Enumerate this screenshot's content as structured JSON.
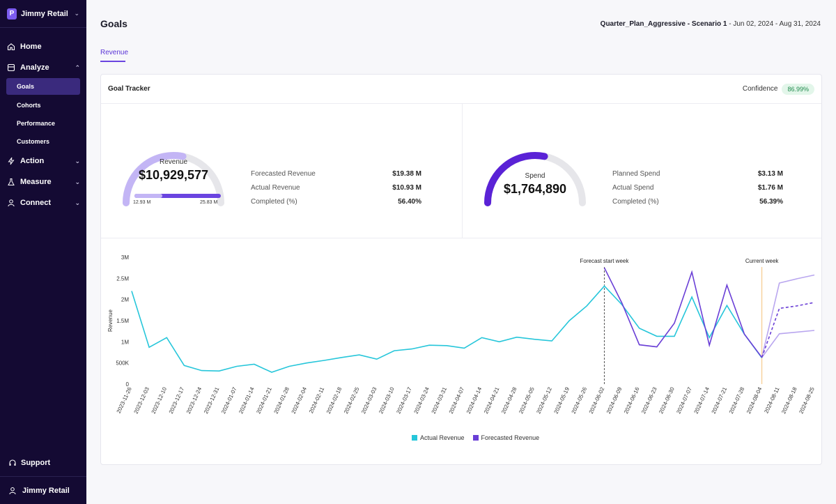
{
  "app": {
    "brand_name": "Jimmy Retail",
    "brand_logo_letter": "P"
  },
  "sidebar": {
    "items": [
      {
        "label": "Home",
        "icon": "home-icon"
      },
      {
        "label": "Analyze",
        "icon": "analyze-icon",
        "expanded": true,
        "children": [
          "Goals",
          "Cohorts",
          "Performance",
          "Customers"
        ],
        "active_child": "Goals"
      },
      {
        "label": "Action",
        "icon": "bolt-icon"
      },
      {
        "label": "Measure",
        "icon": "flask-icon"
      },
      {
        "label": "Connect",
        "icon": "connect-icon"
      }
    ],
    "support_label": "Support",
    "user_label": "Jimmy Retail"
  },
  "header": {
    "title": "Goals",
    "scenario_name": "Quarter_Plan_Aggressive - Scenario 1",
    "separator": "-",
    "date_range": "Jun 02, 2024 - Aug 31, 2024"
  },
  "tabs": [
    {
      "label": "Revenue",
      "active": true
    }
  ],
  "goal_tracker": {
    "title": "Goal Tracker",
    "confidence_label": "Confidence",
    "confidence_value": "86.99%",
    "revenue_gauge": {
      "label": "Revenue",
      "value": "$10,929,577",
      "fraction": 0.564,
      "range_min": "12.93 M",
      "range_max": "25.83 M",
      "metrics": [
        {
          "label": "Forecasted Revenue",
          "value": "$19.38 M"
        },
        {
          "label": "Actual Revenue",
          "value": "$10.93 M"
        },
        {
          "label": "Completed (%)",
          "value": "56.40%"
        }
      ]
    },
    "spend_gauge": {
      "label": "Spend",
      "value": "$1,764,890",
      "fraction": 0.5639,
      "metrics": [
        {
          "label": "Planned Spend",
          "value": "$3.13 M"
        },
        {
          "label": "Actual Spend",
          "value": "$1.76 M"
        },
        {
          "label": "Completed (%)",
          "value": "56.39%"
        }
      ]
    }
  },
  "colors": {
    "sidebar_bg": "#140a33",
    "accent": "#6a44e0",
    "actual": "#26c6da",
    "forecast": "#6a3fd6",
    "forecast_light": "#b9a6ef",
    "gauge_track": "#e6e6ea",
    "revenue_arc": "#c3b5f5",
    "spend_arc": "#5a22d6",
    "current_week_line": "#f5c27a"
  },
  "chart_data": {
    "type": "line",
    "ylabel": "Revenue",
    "xlabel": "",
    "y_ticks": [
      "0",
      "500K",
      "1M",
      "1.5M",
      "2M",
      "2.5M",
      "3M"
    ],
    "ylim": [
      0,
      3000000
    ],
    "x": [
      "2023-11-26",
      "2023-12-03",
      "2023-12-10",
      "2023-12-17",
      "2023-12-24",
      "2023-12-31",
      "2024-01-07",
      "2024-01-14",
      "2024-01-21",
      "2024-01-28",
      "2024-02-04",
      "2024-02-11",
      "2024-02-18",
      "2024-02-25",
      "2024-03-03",
      "2024-03-10",
      "2024-03-17",
      "2024-03-24",
      "2024-03-31",
      "2024-04-07",
      "2024-04-14",
      "2024-04-21",
      "2024-04-28",
      "2024-05-05",
      "2024-05-12",
      "2024-05-19",
      "2024-05-26",
      "2024-06-02",
      "2024-06-09",
      "2024-06-16",
      "2024-06-23",
      "2024-06-30",
      "2024-07-07",
      "2024-07-14",
      "2024-07-21",
      "2024-07-28",
      "2024-08-04",
      "2024-08-11",
      "2024-08-18",
      "2024-08-25"
    ],
    "series": [
      {
        "name": "Actual Revenue",
        "values": [
          2200000,
          870000,
          1100000,
          440000,
          320000,
          310000,
          420000,
          470000,
          280000,
          420000,
          500000,
          560000,
          630000,
          690000,
          590000,
          790000,
          830000,
          920000,
          910000,
          850000,
          1100000,
          1000000,
          1110000,
          1060000,
          1020000,
          1500000,
          1850000,
          2320000,
          1880000,
          1320000,
          1130000,
          1130000,
          2060000,
          1100000,
          1860000,
          1180000,
          620000,
          null,
          null,
          null
        ]
      },
      {
        "name": "Forecasted Revenue",
        "values": [
          null,
          null,
          null,
          null,
          null,
          null,
          null,
          null,
          null,
          null,
          null,
          null,
          null,
          null,
          null,
          null,
          null,
          null,
          null,
          null,
          null,
          null,
          null,
          null,
          null,
          null,
          null,
          2750000,
          1920000,
          930000,
          880000,
          1440000,
          2650000,
          920000,
          2340000,
          1180000,
          630000,
          1790000,
          1850000,
          1930000
        ]
      },
      {
        "name": "Forecast upper",
        "values": [
          null,
          null,
          null,
          null,
          null,
          null,
          null,
          null,
          null,
          null,
          null,
          null,
          null,
          null,
          null,
          null,
          null,
          null,
          null,
          null,
          null,
          null,
          null,
          null,
          null,
          null,
          null,
          null,
          null,
          null,
          null,
          null,
          null,
          null,
          null,
          null,
          630000,
          2390000,
          2490000,
          2580000
        ]
      },
      {
        "name": "Forecast lower",
        "values": [
          null,
          null,
          null,
          null,
          null,
          null,
          null,
          null,
          null,
          null,
          null,
          null,
          null,
          null,
          null,
          null,
          null,
          null,
          null,
          null,
          null,
          null,
          null,
          null,
          null,
          null,
          null,
          null,
          null,
          null,
          null,
          null,
          null,
          null,
          null,
          null,
          630000,
          1190000,
          1230000,
          1270000
        ]
      }
    ],
    "annotations": [
      {
        "label": "Forecast start week",
        "x": "2024-06-02"
      },
      {
        "label": "Current week",
        "x": "2024-08-04"
      }
    ],
    "legend": [
      "Actual Revenue",
      "Forecasted Revenue"
    ],
    "legend_position": "bottom"
  }
}
